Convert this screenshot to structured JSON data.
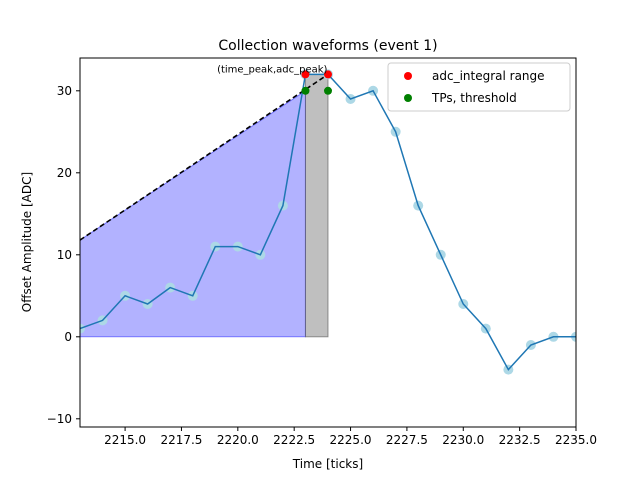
{
  "chart_data": {
    "type": "line",
    "title": "Collection waveforms (event 1)",
    "xlabel": "Time [ticks]",
    "ylabel": "Offset Amplitude [ADC]",
    "xlim": [
      2213,
      2235
    ],
    "ylim": [
      -11,
      34
    ],
    "xticks": [
      2215,
      2217.5,
      2220,
      2222.5,
      2225,
      2227.5,
      2230,
      2232.5,
      2235
    ],
    "xtick_labels": [
      "2215.0",
      "2217.5",
      "2220.0",
      "2222.5",
      "2225.0",
      "2227.5",
      "2230.0",
      "2232.5",
      "2235.0"
    ],
    "yticks": [
      -10,
      0,
      10,
      20,
      30
    ],
    "ytick_labels": [
      "−10",
      "0",
      "10",
      "20",
      "30"
    ],
    "grid": false,
    "legend_position": "top-right",
    "waveform": {
      "color": "#1f77b4",
      "marker_color": "#add8e6",
      "x": [
        2213,
        2214,
        2215,
        2216,
        2217,
        2218,
        2219,
        2220,
        2221,
        2222,
        2223,
        2224,
        2225,
        2226,
        2227,
        2228,
        2229,
        2230,
        2231,
        2232,
        2233,
        2234,
        2235
      ],
      "y": [
        1,
        2,
        5,
        4,
        6,
        5,
        11,
        11,
        10,
        16,
        32,
        32,
        29,
        30,
        25,
        16,
        10,
        4,
        1,
        -4,
        -1,
        0,
        0
      ]
    },
    "area_fill": {
      "color": "#0000ff",
      "x": [
        2213,
        2223
      ],
      "y_top": [
        11.8,
        30
      ]
    },
    "gray_box": {
      "color": "#808080",
      "x": [
        2223,
        2224
      ],
      "y": [
        0,
        32
      ]
    },
    "dashed_line": {
      "color": "#000000",
      "x": [
        2213,
        2224
      ],
      "y": [
        11.8,
        32
      ]
    },
    "series": [
      {
        "name": "adc_integral range",
        "color": "#ff0000",
        "x": [
          2223,
          2224
        ],
        "y": [
          32,
          32
        ]
      },
      {
        "name": "TPs, threshold",
        "color": "#008000",
        "x": [
          2223,
          2224
        ],
        "y": [
          30,
          30
        ]
      }
    ],
    "annotation": {
      "text": "(time_peak,adc_peak)",
      "x": 2223,
      "y": 32
    }
  }
}
